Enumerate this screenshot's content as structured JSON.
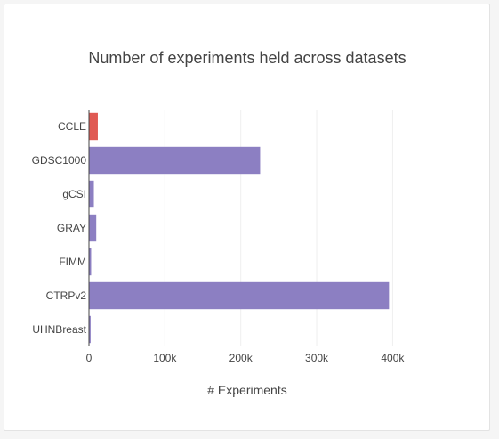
{
  "chart_data": {
    "type": "bar",
    "orientation": "horizontal",
    "title": "Number of experiments held across datasets",
    "xlabel": "# Experiments",
    "ylabel": "",
    "categories": [
      "CCLE",
      "GDSC1000",
      "gCSI",
      "GRAY",
      "FIMM",
      "CTRPv2",
      "UHNBreast"
    ],
    "values": [
      11670,
      225480,
      6460,
      9600,
      2880,
      395260,
      2200
    ],
    "highlight_category": "CCLE",
    "xlim": [
      0,
      430000
    ],
    "xticks": [
      0,
      100000,
      200000,
      300000,
      400000
    ],
    "xtick_labels": [
      "0",
      "100k",
      "200k",
      "300k",
      "400k"
    ],
    "grid": true,
    "legend": "none"
  },
  "colors": {
    "bar": "#8c7fc2",
    "highlight": "#e05a53",
    "grid": "#eeeeee",
    "axis": "#444444"
  }
}
